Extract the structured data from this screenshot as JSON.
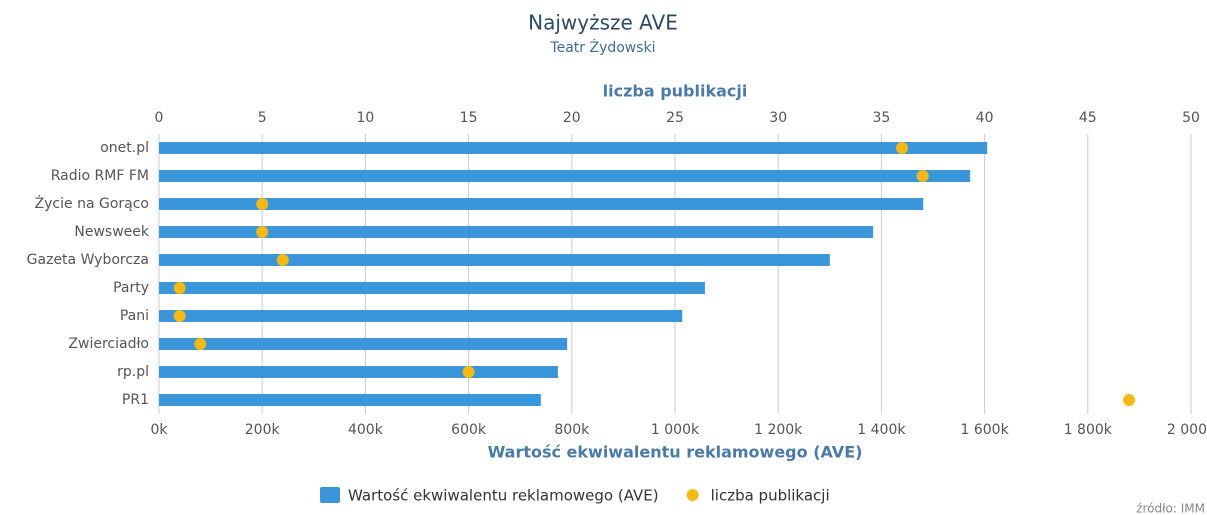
{
  "chart_data": {
    "type": "bar",
    "orientation": "horizontal",
    "title": "Najwyższe AVE",
    "subtitle": "Teatr Żydowski",
    "xlabel": "Wartość ekwiwalentu reklamowego (AVE)",
    "x2label": "liczba publikacji",
    "source": "źródło: IMM",
    "categories": [
      "onet.pl",
      "Radio RMF FM",
      "Życie na Gorąco",
      "Newsweek",
      "Gazeta Wyborcza",
      "Party",
      "Pani",
      "Zwierciadło",
      "rp.pl",
      "PR1"
    ],
    "series": [
      {
        "name": "Wartość ekwiwalentu reklamowego (AVE)",
        "type": "bar",
        "axis": "x",
        "color": "#3a96d8",
        "values": [
          1605000,
          1572000,
          1481000,
          1384000,
          1300000,
          1058000,
          1014000,
          791000,
          773000,
          740000
        ]
      },
      {
        "name": "liczba publikacji",
        "type": "scatter",
        "axis": "x2",
        "color": "#f6b814",
        "values": [
          36,
          37,
          5,
          5,
          6,
          1,
          1,
          2,
          15,
          47
        ]
      }
    ],
    "xlim": [
      0,
      2000000
    ],
    "xticks": [
      {
        "value": 0,
        "label": "0k"
      },
      {
        "value": 200000,
        "label": "200k"
      },
      {
        "value": 400000,
        "label": "400k"
      },
      {
        "value": 600000,
        "label": "600k"
      },
      {
        "value": 800000,
        "label": "800k"
      },
      {
        "value": 1000000,
        "label": "1 000k"
      },
      {
        "value": 1200000,
        "label": "1 200k"
      },
      {
        "value": 1400000,
        "label": "1 400k"
      },
      {
        "value": 1600000,
        "label": "1 600k"
      },
      {
        "value": 1800000,
        "label": "1 800k"
      },
      {
        "value": 2000000,
        "label": "2 000k"
      }
    ],
    "x2lim": [
      0,
      50
    ],
    "x2ticks": [
      0,
      5,
      10,
      15,
      20,
      25,
      30,
      35,
      40,
      45,
      50
    ],
    "grid": true
  }
}
